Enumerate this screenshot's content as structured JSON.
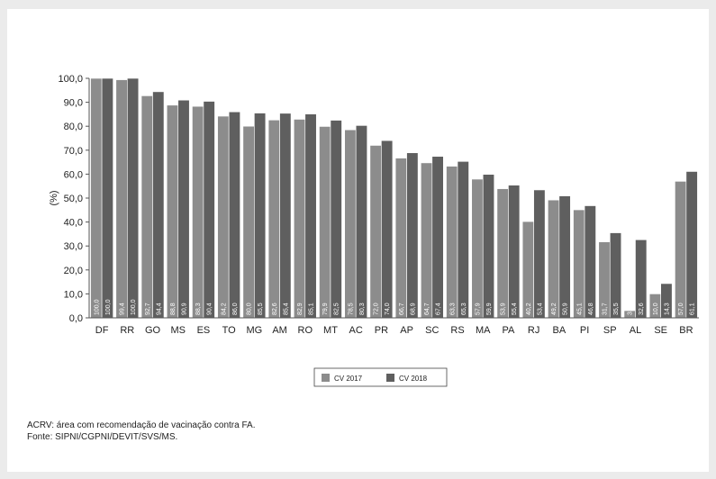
{
  "chart_data": {
    "type": "bar",
    "title": "",
    "xlabel": "",
    "ylabel": "(%)",
    "ylim": [
      0,
      100
    ],
    "ytick_labels": [
      "0,0",
      "10,0",
      "20,0",
      "30,0",
      "40,0",
      "50,0",
      "60,0",
      "70,0",
      "80,0",
      "90,0",
      "100,0"
    ],
    "categories": [
      "DF",
      "RR",
      "GO",
      "MS",
      "ES",
      "TO",
      "MG",
      "AM",
      "RO",
      "MT",
      "AC",
      "PR",
      "AP",
      "SC",
      "RS",
      "MA",
      "PA",
      "RJ",
      "BA",
      "PI",
      "SP",
      "AL",
      "SE",
      "BR"
    ],
    "series": [
      {
        "name": "CV 2017",
        "color": "#8c8c8c",
        "values": [
          100.0,
          99.4,
          92.7,
          88.8,
          88.3,
          84.2,
          80.0,
          82.6,
          82.9,
          79.9,
          78.5,
          72.0,
          66.7,
          64.7,
          63.3,
          57.9,
          53.9,
          40.2,
          49.2,
          45.1,
          31.7,
          3.0,
          10.0,
          57.0
        ],
        "labels": [
          "100,0",
          "99,4",
          "92,7",
          "88,8",
          "88,3",
          "84,2",
          "80,0",
          "82,6",
          "82,9",
          "79,9",
          "78,5",
          "72,0",
          "66,7",
          "64,7",
          "63,3",
          "57,9",
          "53,9",
          "40,2",
          "49,2",
          "45,1",
          "31,7",
          "3,0",
          "10,0",
          "57,0"
        ]
      },
      {
        "name": "CV 2018",
        "color": "#5f5f5f",
        "values": [
          100.0,
          100.0,
          94.4,
          90.9,
          90.4,
          86.0,
          85.5,
          85.4,
          85.1,
          82.5,
          80.3,
          74.0,
          68.9,
          67.4,
          65.3,
          59.9,
          55.4,
          53.4,
          50.9,
          46.8,
          35.5,
          32.6,
          14.3,
          61.1
        ],
        "labels": [
          "100,0",
          "100,0",
          "94,4",
          "90,9",
          "90,4",
          "86,0",
          "85,5",
          "85,4",
          "85,1",
          "82,5",
          "80,3",
          "74,0",
          "68,9",
          "67,4",
          "65,3",
          "59,9",
          "55,4",
          "53,4",
          "50,9",
          "46,8",
          "35,5",
          "32,6",
          "14,3",
          "61,1"
        ]
      }
    ],
    "legend_position": "bottom-center",
    "grid": false
  },
  "notes": {
    "line1": "ACRV: área com recomendação de vacinação contra FA.",
    "line2": "Fonte: SIPNI/CGPNI/DEVIT/SVS/MS."
  }
}
